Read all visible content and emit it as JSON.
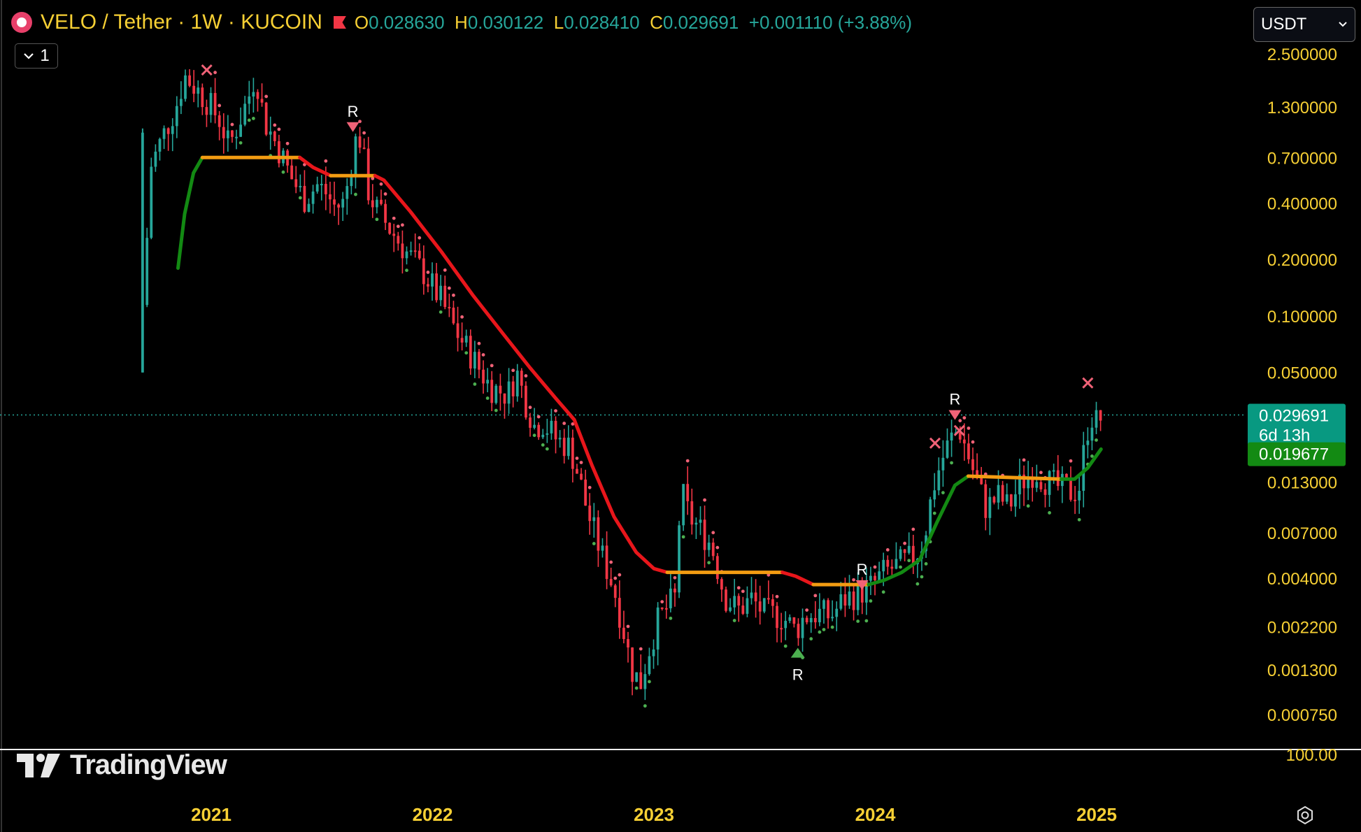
{
  "header": {
    "symbol": "VELO / Tether · 1W · KUCOIN",
    "open_label": "O",
    "open": "0.028630",
    "high_label": "H",
    "high": "0.030122",
    "low_label": "L",
    "low": "0.028410",
    "close_label": "C",
    "close": "0.029691",
    "change": "+0.001110 (+3.88%)"
  },
  "controls": {
    "collapse_count": "1",
    "currency": "USDT"
  },
  "brand": {
    "name": "TradingView"
  },
  "chart_data": {
    "type": "candlestick",
    "scale": "log",
    "ylim": [
      0.00055,
      3.2
    ],
    "y_ticks": [
      "2.500000",
      "1.300000",
      "0.700000",
      "0.400000",
      "0.200000",
      "0.100000",
      "0.050000",
      "0.029691",
      "0.013000",
      "0.007000",
      "0.004000",
      "0.002200",
      "0.001300",
      "0.000750"
    ],
    "y_tick_values": [
      2.5,
      1.3,
      0.7,
      0.4,
      0.2,
      0.1,
      0.05,
      0.029691,
      0.013,
      0.007,
      0.004,
      0.0022,
      0.0013,
      0.00075
    ],
    "x_ticks": [
      "2021",
      "2022",
      "2023",
      "2024",
      "2025"
    ],
    "x_tick_values": [
      2021.0,
      2022.0,
      2023.0,
      2024.0,
      2025.0
    ],
    "last_price": "0.029691",
    "countdown": "6d 13h",
    "indicator_value": "0.019677",
    "lower_pane_label": "100.00",
    "colors": {
      "up": "#26a69a",
      "down": "#f23645",
      "bull": "#138a13",
      "bear": "#e8161b",
      "neutral": "#f39c12",
      "label": "#f7d034"
    },
    "price_path": [
      [
        2020.69,
        0.05
      ],
      [
        2020.72,
        0.6
      ],
      [
        2020.78,
        0.9
      ],
      [
        2020.84,
        1.3
      ],
      [
        2020.88,
        1.9
      ],
      [
        2020.92,
        1.7
      ],
      [
        2020.98,
        1.4
      ],
      [
        2021.04,
        1.1
      ],
      [
        2021.08,
        0.8
      ],
      [
        2021.14,
        1.2
      ],
      [
        2021.18,
        1.6
      ],
      [
        2021.2,
        2.0
      ],
      [
        2021.24,
        1.1
      ],
      [
        2021.3,
        0.8
      ],
      [
        2021.36,
        0.55
      ],
      [
        2021.42,
        0.42
      ],
      [
        2021.48,
        0.5
      ],
      [
        2021.52,
        0.45
      ],
      [
        2021.56,
        0.38
      ],
      [
        2021.6,
        0.4
      ],
      [
        2021.65,
        0.85
      ],
      [
        2021.68,
        0.9
      ],
      [
        2021.7,
        0.5
      ],
      [
        2021.74,
        0.38
      ],
      [
        2021.8,
        0.3
      ],
      [
        2021.88,
        0.22
      ],
      [
        2021.96,
        0.17
      ],
      [
        2022.04,
        0.12
      ],
      [
        2022.1,
        0.085
      ],
      [
        2022.18,
        0.06
      ],
      [
        2022.26,
        0.042
      ],
      [
        2022.34,
        0.038
      ],
      [
        2022.38,
        0.05
      ],
      [
        2022.42,
        0.035
      ],
      [
        2022.46,
        0.026
      ],
      [
        2022.5,
        0.027
      ],
      [
        2022.56,
        0.022
      ],
      [
        2022.62,
        0.02
      ],
      [
        2022.66,
        0.014
      ],
      [
        2022.7,
        0.009
      ],
      [
        2022.76,
        0.0055
      ],
      [
        2022.82,
        0.0035
      ],
      [
        2022.86,
        0.0022
      ],
      [
        2022.9,
        0.0013
      ],
      [
        2022.94,
        0.0011
      ],
      [
        2022.98,
        0.0017
      ],
      [
        2023.02,
        0.0024
      ],
      [
        2023.06,
        0.0028
      ],
      [
        2023.1,
        0.0032
      ],
      [
        2023.12,
        0.012
      ],
      [
        2023.16,
        0.0085
      ],
      [
        2023.2,
        0.0075
      ],
      [
        2023.26,
        0.006
      ],
      [
        2023.32,
        0.0032
      ],
      [
        2023.38,
        0.0027
      ],
      [
        2023.44,
        0.0031
      ],
      [
        2023.5,
        0.0026
      ],
      [
        2023.58,
        0.0025
      ],
      [
        2023.64,
        0.0021
      ],
      [
        2023.68,
        0.0025
      ],
      [
        2023.74,
        0.0026
      ],
      [
        2023.8,
        0.0025
      ],
      [
        2023.86,
        0.0031
      ],
      [
        2023.92,
        0.0033
      ],
      [
        2023.98,
        0.0036
      ],
      [
        2024.04,
        0.0043
      ],
      [
        2024.12,
        0.0048
      ],
      [
        2024.18,
        0.0052
      ],
      [
        2024.22,
        0.0065
      ],
      [
        2024.26,
        0.012
      ],
      [
        2024.3,
        0.017
      ],
      [
        2024.34,
        0.022
      ],
      [
        2024.38,
        0.025
      ],
      [
        2024.42,
        0.018
      ],
      [
        2024.46,
        0.013
      ],
      [
        2024.5,
        0.0095
      ],
      [
        2024.56,
        0.011
      ],
      [
        2024.6,
        0.0095
      ],
      [
        2024.66,
        0.013
      ],
      [
        2024.72,
        0.015
      ],
      [
        2024.78,
        0.013
      ],
      [
        2024.84,
        0.012
      ],
      [
        2024.88,
        0.0115
      ],
      [
        2024.92,
        0.012
      ],
      [
        2024.94,
        0.018
      ],
      [
        2024.97,
        0.03
      ],
      [
        2025.0,
        0.027
      ],
      [
        2025.03,
        0.0297
      ]
    ],
    "trend_segments": [
      {
        "state": "bull",
        "points": [
          [
            2020.85,
            0.18
          ],
          [
            2020.88,
            0.35
          ],
          [
            2020.92,
            0.58
          ],
          [
            2020.96,
            0.7
          ]
        ]
      },
      {
        "state": "neutral",
        "points": [
          [
            2020.96,
            0.7
          ],
          [
            2021.4,
            0.7
          ]
        ]
      },
      {
        "state": "bear",
        "points": [
          [
            2021.4,
            0.7
          ],
          [
            2021.46,
            0.62
          ],
          [
            2021.54,
            0.56
          ]
        ]
      },
      {
        "state": "neutral",
        "points": [
          [
            2021.54,
            0.56
          ],
          [
            2021.74,
            0.56
          ]
        ]
      },
      {
        "state": "bear",
        "points": [
          [
            2021.74,
            0.56
          ],
          [
            2021.78,
            0.53
          ],
          [
            2021.9,
            0.36
          ],
          [
            2022.04,
            0.22
          ],
          [
            2022.18,
            0.13
          ],
          [
            2022.32,
            0.08
          ],
          [
            2022.44,
            0.053
          ],
          [
            2022.56,
            0.036
          ],
          [
            2022.64,
            0.028
          ],
          [
            2022.72,
            0.016
          ],
          [
            2022.82,
            0.0085
          ],
          [
            2022.92,
            0.0055
          ],
          [
            2023.0,
            0.0045
          ],
          [
            2023.06,
            0.0043
          ]
        ]
      },
      {
        "state": "neutral",
        "points": [
          [
            2023.06,
            0.0043
          ],
          [
            2023.58,
            0.0043
          ]
        ]
      },
      {
        "state": "bear",
        "points": [
          [
            2023.58,
            0.0043
          ],
          [
            2023.64,
            0.0041
          ],
          [
            2023.72,
            0.0037
          ]
        ]
      },
      {
        "state": "neutral",
        "points": [
          [
            2023.72,
            0.0037
          ],
          [
            2023.97,
            0.0037
          ]
        ]
      },
      {
        "state": "bull",
        "points": [
          [
            2023.97,
            0.0037
          ],
          [
            2024.04,
            0.0039
          ],
          [
            2024.12,
            0.0043
          ],
          [
            2024.2,
            0.005
          ],
          [
            2024.28,
            0.008
          ],
          [
            2024.36,
            0.0125
          ],
          [
            2024.42,
            0.014
          ]
        ]
      },
      {
        "state": "neutral",
        "points": [
          [
            2024.42,
            0.014
          ],
          [
            2024.84,
            0.0135
          ]
        ]
      },
      {
        "state": "bull",
        "points": [
          [
            2024.84,
            0.0135
          ],
          [
            2024.9,
            0.0135
          ],
          [
            2024.96,
            0.0155
          ],
          [
            2025.02,
            0.0195
          ]
        ]
      }
    ],
    "markers": [
      {
        "type": "x",
        "x": 2020.98,
        "y": 2.05
      },
      {
        "type": "down",
        "x": 2021.64,
        "y": 1.08,
        "label": "R"
      },
      {
        "type": "down",
        "x": 2023.94,
        "y": 0.0039,
        "label": "R"
      },
      {
        "type": "up",
        "x": 2023.65,
        "y": 0.0017,
        "label": "R"
      },
      {
        "type": "x",
        "x": 2024.27,
        "y": 0.021
      },
      {
        "type": "down",
        "x": 2024.36,
        "y": 0.0315,
        "label": "R"
      },
      {
        "type": "x",
        "x": 2024.38,
        "y": 0.0245
      },
      {
        "type": "x",
        "x": 2024.96,
        "y": 0.044
      }
    ]
  }
}
